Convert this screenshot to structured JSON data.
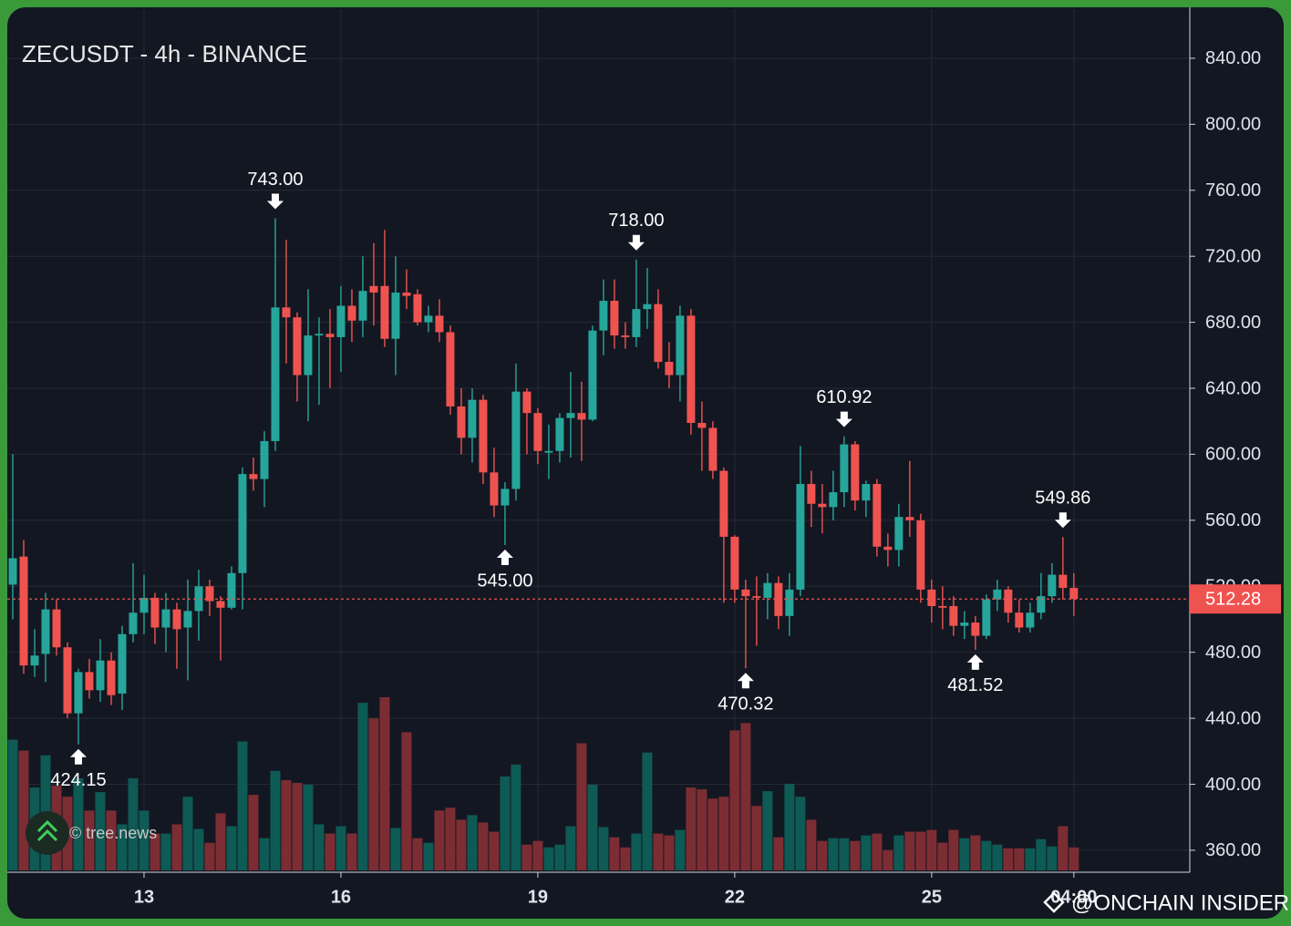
{
  "chart_data": {
    "type": "candlestick",
    "title": "ZECUSDT - 4h - BINANCE",
    "watermarks": [
      "© tree.news",
      "@ONCHAIN INSIDER"
    ],
    "up_color": "#26a69a",
    "down_color": "#ef5350",
    "up_volume_color": "#0e5a54",
    "down_volume_color": "#7c2d33",
    "grid": true,
    "ylim": [
      347.8,
      869.8
    ],
    "yticks": [
      {
        "value": 360,
        "label": "360.00"
      },
      {
        "value": 400,
        "label": "400.00"
      },
      {
        "value": 440,
        "label": "440.00"
      },
      {
        "value": 480,
        "label": "480.00"
      },
      {
        "value": 520,
        "label": "520.00"
      },
      {
        "value": 560,
        "label": "560.00"
      },
      {
        "value": 600,
        "label": "600.00"
      },
      {
        "value": 640,
        "label": "640.00"
      },
      {
        "value": 680,
        "label": "680.00"
      },
      {
        "value": 720,
        "label": "720.00"
      },
      {
        "value": 760,
        "label": "760.00"
      },
      {
        "value": 800,
        "label": "800.00"
      },
      {
        "value": 840,
        "label": "840.00"
      }
    ],
    "xlim": [
      -0.5,
      107.6
    ],
    "xticks": [
      {
        "value": 12,
        "label": "13"
      },
      {
        "value": 30,
        "label": "16"
      },
      {
        "value": 48,
        "label": "19"
      },
      {
        "value": 66,
        "label": "22"
      },
      {
        "value": 84,
        "label": "25"
      },
      {
        "value": 97,
        "label": "04:00"
      }
    ],
    "last_price": {
      "value": 512.28,
      "label": "512.28"
    },
    "open": [
      521,
      538,
      472,
      479,
      506,
      483,
      443,
      468,
      457,
      475,
      455,
      491,
      504,
      513,
      495,
      506,
      495,
      505,
      520,
      511,
      507,
      528,
      588,
      585,
      608,
      689,
      683,
      648,
      672,
      673,
      671,
      690,
      681,
      702,
      702,
      670,
      698,
      697,
      680,
      684,
      674,
      629,
      610,
      633,
      589,
      569,
      579,
      638,
      625,
      601,
      602,
      622,
      625,
      621,
      675,
      693,
      672,
      671,
      688,
      691,
      656,
      648,
      684,
      619,
      616,
      590,
      550,
      518,
      514,
      513,
      522,
      502,
      518,
      582,
      570,
      568,
      577,
      606,
      572,
      582,
      544,
      542,
      562,
      560,
      518,
      508,
      508,
      496,
      498,
      490,
      512,
      518,
      504,
      495,
      504,
      514,
      527,
      519
    ],
    "high": [
      600,
      548,
      494,
      516,
      512,
      486,
      470,
      476,
      488,
      480,
      496,
      534,
      527,
      516,
      516,
      510,
      524,
      530,
      524,
      514,
      532,
      592,
      598,
      614,
      743,
      730,
      686,
      700,
      683,
      688,
      702,
      700,
      720,
      728,
      736,
      720,
      712,
      700,
      690,
      694,
      678,
      640,
      640,
      636,
      604,
      583,
      655,
      640,
      628,
      618,
      625,
      650,
      644,
      678,
      706,
      706,
      680,
      718,
      713,
      700,
      668,
      690,
      688,
      632,
      620,
      592,
      551,
      524,
      526,
      528,
      526,
      528,
      605,
      590,
      582,
      590,
      610.92,
      608,
      584,
      585,
      552,
      570,
      596,
      564,
      524,
      520,
      514,
      505,
      502,
      515,
      524,
      520,
      512,
      510,
      528,
      534,
      549.86,
      528
    ],
    "low": [
      500,
      467,
      465,
      462,
      478,
      440,
      424.15,
      452,
      450,
      448,
      445,
      486,
      491,
      485,
      480,
      470,
      463,
      487,
      502,
      475,
      506,
      506,
      578,
      568,
      602,
      655,
      632,
      620,
      630,
      640,
      650,
      668,
      671,
      678,
      665,
      648,
      688,
      678,
      674,
      668,
      624,
      600,
      595,
      582,
      562,
      545,
      572,
      600,
      594,
      585,
      595,
      598,
      596,
      620,
      660,
      664,
      664,
      665,
      676,
      652,
      640,
      632,
      612,
      590,
      585,
      510,
      510,
      470.32,
      484,
      500,
      494,
      490,
      514,
      556,
      552,
      560,
      568,
      566,
      562,
      538,
      532,
      532,
      550,
      510,
      498,
      494,
      490,
      488,
      481.52,
      488,
      505,
      498,
      492,
      492,
      500,
      510,
      512,
      502
    ],
    "close": [
      537,
      472,
      478,
      506,
      483,
      443,
      468,
      457,
      475,
      454,
      491,
      504,
      513,
      495,
      506,
      494,
      505,
      520,
      511,
      507,
      528,
      588,
      585,
      608,
      689,
      683,
      648,
      672,
      673,
      671,
      690,
      681,
      699,
      698,
      670,
      698,
      696,
      680,
      684,
      674,
      629,
      610,
      633,
      589,
      569,
      579,
      638,
      625,
      602,
      602,
      622,
      625,
      621,
      675,
      693,
      672,
      671,
      688,
      691,
      656,
      648,
      684,
      619,
      616,
      590,
      550,
      518,
      514,
      513,
      522,
      502,
      518,
      582,
      570,
      568,
      577,
      606,
      572,
      582,
      544,
      542,
      562,
      560,
      518,
      508,
      507,
      496,
      498,
      490,
      512,
      518,
      504,
      495,
      504,
      514,
      527,
      519,
      512.28
    ],
    "volume": [
      142,
      130,
      90,
      125,
      92,
      80,
      100,
      65,
      85,
      65,
      50,
      100,
      65,
      40,
      40,
      50,
      80,
      45,
      30,
      62,
      48,
      140,
      82,
      35,
      108,
      98,
      95,
      93,
      50,
      40,
      48,
      40,
      182,
      165,
      188,
      46,
      150,
      35,
      30,
      65,
      68,
      55,
      60,
      52,
      42,
      102,
      115,
      28,
      32,
      25,
      28,
      48,
      138,
      93,
      47,
      36,
      25,
      40,
      128,
      40,
      38,
      44,
      90,
      88,
      78,
      80,
      152,
      160,
      70,
      86,
      36,
      94,
      80,
      55,
      32,
      35,
      35,
      32,
      38,
      40,
      22,
      38,
      42,
      42,
      44,
      30,
      44,
      35,
      38,
      32,
      28,
      24,
      24,
      24,
      34,
      26,
      48,
      25
    ],
    "high_labels": [
      null,
      null,
      null,
      null,
      null,
      null,
      null,
      null,
      null,
      null,
      null,
      null,
      null,
      null,
      null,
      null,
      null,
      null,
      null,
      null,
      null,
      null,
      null,
      null,
      "743.00",
      null,
      null,
      null,
      null,
      null,
      null,
      null,
      null,
      null,
      null,
      null,
      null,
      null,
      null,
      null,
      null,
      null,
      null,
      null,
      null,
      null,
      null,
      null,
      null,
      null,
      null,
      null,
      null,
      null,
      null,
      null,
      null,
      "718.00",
      null,
      null,
      null,
      null,
      null,
      null,
      null,
      null,
      null,
      null,
      null,
      null,
      null,
      null,
      null,
      null,
      null,
      null,
      "610.92",
      null,
      null,
      null,
      null,
      null,
      null,
      null,
      null,
      null,
      null,
      null,
      null,
      null,
      null,
      null,
      null,
      null,
      null,
      null,
      "549.86",
      null
    ],
    "low_labels": [
      null,
      null,
      null,
      null,
      null,
      null,
      "424.15",
      null,
      null,
      null,
      null,
      null,
      null,
      null,
      null,
      null,
      null,
      null,
      null,
      null,
      null,
      null,
      null,
      null,
      null,
      null,
      null,
      null,
      null,
      null,
      null,
      null,
      null,
      null,
      null,
      null,
      null,
      null,
      null,
      null,
      null,
      null,
      null,
      null,
      null,
      "545.00",
      null,
      null,
      null,
      null,
      null,
      null,
      null,
      null,
      null,
      null,
      null,
      null,
      null,
      null,
      null,
      null,
      null,
      null,
      null,
      null,
      null,
      "470.32",
      null,
      null,
      null,
      null,
      null,
      null,
      null,
      null,
      null,
      null,
      null,
      null,
      null,
      null,
      null,
      null,
      null,
      null,
      null,
      null,
      "481.52",
      null,
      null,
      null,
      null,
      null,
      null,
      null,
      null,
      null
    ]
  }
}
